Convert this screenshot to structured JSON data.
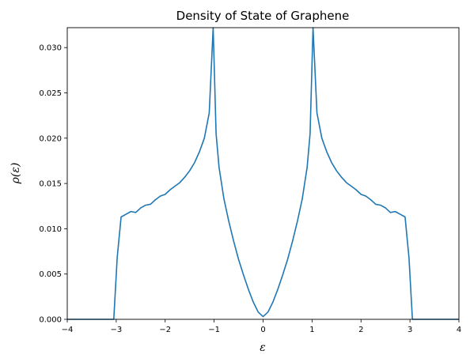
{
  "chart_data": {
    "type": "line",
    "title": "Density of State of Graphene",
    "xlabel": "ε",
    "ylabel": "ρ(ε)",
    "xlim": [
      -4,
      4
    ],
    "ylim": [
      0,
      0.0322
    ],
    "grid": false,
    "line_color": "#1f77b4",
    "x_ticks": [
      -4,
      -3,
      -2,
      -1,
      0,
      1,
      2,
      3,
      4
    ],
    "x_tick_labels": [
      "−4",
      "−3",
      "−2",
      "−1",
      "0",
      "1",
      "2",
      "3",
      "4"
    ],
    "y_ticks": [
      0.0,
      0.005,
      0.01,
      0.015,
      0.02,
      0.025,
      0.03
    ],
    "y_tick_labels": [
      "0.000",
      "0.005",
      "0.010",
      "0.015",
      "0.020",
      "0.025",
      "0.030"
    ],
    "series": [
      {
        "x": [
          -4.0,
          -3.05,
          -2.98,
          -2.9,
          -2.8,
          -2.7,
          -2.6,
          -2.5,
          -2.4,
          -2.3,
          -2.2,
          -2.1,
          -2.0,
          -1.9,
          -1.8,
          -1.7,
          -1.6,
          -1.5,
          -1.4,
          -1.3,
          -1.2,
          -1.1,
          -1.02,
          -0.96,
          -0.9,
          -0.8,
          -0.7,
          -0.6,
          -0.5,
          -0.4,
          -0.3,
          -0.2,
          -0.1,
          0.0,
          0.1,
          0.2,
          0.3,
          0.4,
          0.5,
          0.6,
          0.7,
          0.8,
          0.9,
          0.96,
          1.02,
          1.1,
          1.2,
          1.3,
          1.4,
          1.5,
          1.6,
          1.7,
          1.8,
          1.9,
          2.0,
          2.1,
          2.2,
          2.3,
          2.4,
          2.5,
          2.6,
          2.7,
          2.8,
          2.9,
          2.98,
          3.05,
          4.0
        ],
        "y": [
          0.0,
          0.0,
          0.0068,
          0.0113,
          0.0116,
          0.0119,
          0.0118,
          0.0123,
          0.0126,
          0.0127,
          0.0132,
          0.0136,
          0.0138,
          0.0143,
          0.0147,
          0.0151,
          0.0157,
          0.0164,
          0.0173,
          0.0185,
          0.02,
          0.0228,
          0.0322,
          0.0205,
          0.0168,
          0.0133,
          0.0108,
          0.0086,
          0.0066,
          0.0049,
          0.0033,
          0.0019,
          0.0008,
          0.0003,
          0.0008,
          0.0019,
          0.0033,
          0.0049,
          0.0066,
          0.0086,
          0.0108,
          0.0133,
          0.0168,
          0.0205,
          0.0322,
          0.0228,
          0.02,
          0.0185,
          0.0173,
          0.0164,
          0.0157,
          0.0151,
          0.0147,
          0.0143,
          0.0138,
          0.0136,
          0.0132,
          0.0127,
          0.0126,
          0.0123,
          0.0118,
          0.0119,
          0.0116,
          0.0113,
          0.0068,
          0.0,
          0.0
        ]
      }
    ]
  }
}
